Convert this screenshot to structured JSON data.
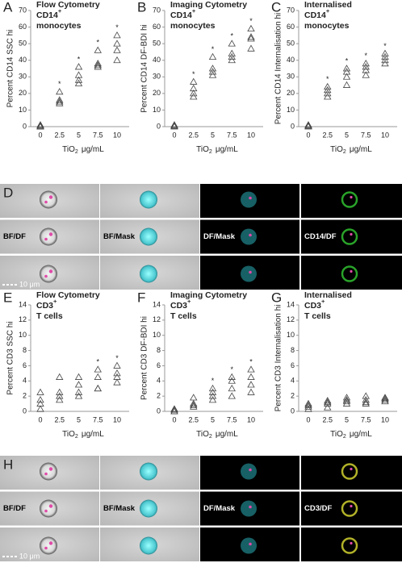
{
  "chart_data": [
    {
      "type": "scatter",
      "panel": "A",
      "title": [
        "Flow Cytometry",
        "CD14",
        "monocytes"
      ],
      "title_superscript": "+",
      "ylabel": "Percent CD14 SSC hi",
      "xlabel": {
        "text": "TiO",
        "subscript": "2",
        "unit": "μg/mL"
      },
      "categories": [
        "0",
        "2.5",
        "5",
        "7.5",
        "10"
      ],
      "values": [
        [
          0,
          0.5,
          1,
          0
        ],
        [
          14,
          15,
          16,
          21
        ],
        [
          26,
          28,
          31,
          36
        ],
        [
          36,
          37,
          38,
          46
        ],
        [
          40,
          46,
          50,
          55
        ]
      ],
      "ylim": [
        0,
        70
      ],
      "yticks": [
        0,
        10,
        20,
        30,
        40,
        50,
        60,
        70
      ],
      "annotations": [
        {
          "category": "2.5",
          "text": "*"
        },
        {
          "category": "5",
          "text": "*"
        },
        {
          "category": "7.5",
          "text": "*"
        },
        {
          "category": "10",
          "text": "*"
        }
      ]
    },
    {
      "type": "scatter",
      "panel": "B",
      "title": [
        "Imaging Cytometry",
        "CD14",
        "monocytes"
      ],
      "title_superscript": "+",
      "ylabel": "Percent CD14 DF-BDI hi",
      "xlabel": {
        "text": "TiO",
        "subscript": "2",
        "unit": "μg/mL"
      },
      "categories": [
        "0",
        "2.5",
        "5",
        "7.5",
        "10"
      ],
      "values": [
        [
          0,
          0.5,
          1,
          0.3
        ],
        [
          18,
          20,
          23,
          27
        ],
        [
          31,
          33,
          35,
          42
        ],
        [
          40,
          42,
          44,
          50
        ],
        [
          47,
          53,
          54,
          59
        ]
      ],
      "ylim": [
        0,
        70
      ],
      "yticks": [
        0,
        10,
        20,
        30,
        40,
        50,
        60,
        70
      ],
      "annotations": [
        {
          "category": "2.5",
          "text": "*"
        },
        {
          "category": "5",
          "text": "*"
        },
        {
          "category": "7.5",
          "text": "*"
        },
        {
          "category": "10",
          "text": "*"
        }
      ]
    },
    {
      "type": "scatter",
      "panel": "C",
      "title": [
        "Internalised",
        "CD14",
        "monocytes"
      ],
      "title_superscript": "+",
      "ylabel": "Percent CD14 Internalisation hi",
      "xlabel": {
        "text": "TiO",
        "subscript": "2",
        "unit": "μg/mL"
      },
      "categories": [
        "0",
        "2.5",
        "5",
        "7.5",
        "10"
      ],
      "values": [
        [
          0,
          0.5,
          1,
          0.3
        ],
        [
          18,
          20,
          22,
          24
        ],
        [
          25,
          30,
          33,
          35
        ],
        [
          31,
          34,
          36,
          38
        ],
        [
          38,
          40,
          42,
          44
        ]
      ],
      "ylim": [
        0,
        70
      ],
      "yticks": [
        0,
        10,
        20,
        30,
        40,
        50,
        60,
        70
      ],
      "annotations": [
        {
          "category": "2.5",
          "text": "*"
        },
        {
          "category": "5",
          "text": "*"
        },
        {
          "category": "7.5",
          "text": "*"
        },
        {
          "category": "10",
          "text": "*"
        }
      ]
    },
    {
      "type": "scatter",
      "panel": "E",
      "title": [
        "Flow Cytometry",
        "CD3",
        "T cells"
      ],
      "title_superscript": "+",
      "ylabel": "Percent CD3 SSC hi",
      "xlabel": {
        "text": "TiO",
        "subscript": "2",
        "unit": "μg/mL"
      },
      "categories": [
        "0",
        "2.5",
        "5",
        "7.5",
        "10"
      ],
      "values": [
        [
          0.3,
          1,
          1.5,
          2.5
        ],
        [
          1.5,
          2,
          2.5,
          4.5
        ],
        [
          2,
          2.5,
          3.5,
          4.5
        ],
        [
          3,
          3,
          4.5,
          5.5
        ],
        [
          3.8,
          4.5,
          5,
          6
        ]
      ],
      "ylim": [
        0,
        14
      ],
      "yticks": [
        0,
        2,
        4,
        6,
        8,
        10,
        12,
        14
      ],
      "annotations": [
        {
          "category": "7.5",
          "text": "*"
        },
        {
          "category": "10",
          "text": "*"
        }
      ]
    },
    {
      "type": "scatter",
      "panel": "F",
      "title": [
        "Imaging Cytometry",
        "CD3",
        "T cells"
      ],
      "title_superscript": "+",
      "ylabel": "Percent CD3 DF-BDI hi",
      "xlabel": {
        "text": "TiO",
        "subscript": "2",
        "unit": "μg/mL"
      },
      "categories": [
        "0",
        "2.5",
        "5",
        "7.5",
        "10"
      ],
      "values": [
        [
          0,
          0.2,
          0.3,
          0
        ],
        [
          0.6,
          0.8,
          1,
          1.8
        ],
        [
          1.5,
          2,
          2.5,
          3
        ],
        [
          2,
          3,
          4,
          4.5
        ],
        [
          2.5,
          3.5,
          4.5,
          5.5
        ]
      ],
      "ylim": [
        0,
        14
      ],
      "yticks": [
        0,
        2,
        4,
        6,
        8,
        10,
        12,
        14
      ],
      "annotations": [
        {
          "category": "5",
          "text": "*"
        },
        {
          "category": "7.5",
          "text": "*"
        },
        {
          "category": "10",
          "text": "*"
        }
      ]
    },
    {
      "type": "scatter",
      "panel": "G",
      "title": [
        "Internalised",
        "CD3",
        "T cells"
      ],
      "title_superscript": "+",
      "ylabel": "Percent CD3 Internalisation hi",
      "xlabel": {
        "text": "TiO",
        "subscript": "2",
        "unit": "μg/mL"
      },
      "categories": [
        "0",
        "2.5",
        "5",
        "7.5",
        "10"
      ],
      "values": [
        [
          0.3,
          0.6,
          0.8,
          1
        ],
        [
          0.5,
          1,
          1.2,
          1.4
        ],
        [
          1,
          1.3,
          1.5,
          1.8
        ],
        [
          1,
          1.2,
          1.5,
          2
        ],
        [
          1.3,
          1.5,
          1.7,
          1.8
        ]
      ],
      "ylim": [
        0,
        14
      ],
      "yticks": [
        0,
        2,
        4,
        6,
        8,
        10,
        12,
        14
      ],
      "annotations": []
    }
  ],
  "image_panels": [
    {
      "panel": "D",
      "channels": [
        "BF/DF",
        "BF/Mask",
        "DF/Mask",
        "CD14/DF"
      ],
      "scale_bar": "10 μm"
    },
    {
      "panel": "H",
      "channels": [
        "BF/DF",
        "BF/Mask",
        "DF/Mask",
        "CD3/DF"
      ],
      "scale_bar": "10 μm"
    }
  ]
}
